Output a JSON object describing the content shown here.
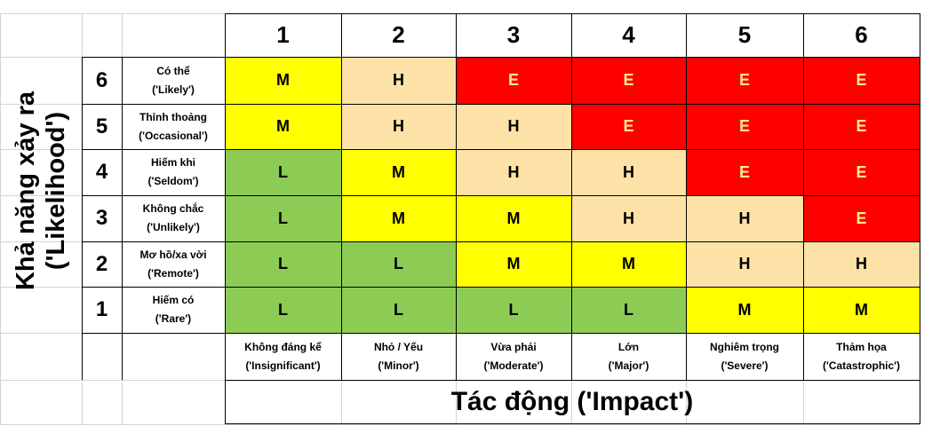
{
  "matrix": {
    "impact_title": "Tác động  ('Impact')",
    "likelihood_title_line1": "Khả năng xảy ra",
    "likelihood_title_line2": "('Likelihood')",
    "impact_levels": [
      {
        "num": "1",
        "name": "Không đáng kể",
        "en": "('Insignificant')"
      },
      {
        "num": "2",
        "name": "Nhỏ / Yếu",
        "en": "('Minor')"
      },
      {
        "num": "3",
        "name": "Vừa phải",
        "en": "('Moderate')"
      },
      {
        "num": "4",
        "name": "Lớn",
        "en": "('Major')"
      },
      {
        "num": "5",
        "name": "Nghiêm trọng",
        "en": "('Severe')"
      },
      {
        "num": "6",
        "name": "Thảm họa",
        "en": "('Catastrophic')"
      }
    ],
    "likelihood_levels": [
      {
        "num": "6",
        "name": "Có thể",
        "en": "('Likely')",
        "ratings": [
          "M",
          "H",
          "E",
          "E",
          "E",
          "E"
        ]
      },
      {
        "num": "5",
        "name": "Thỉnh thoảng",
        "en": "('Occasional')",
        "ratings": [
          "M",
          "H",
          "H",
          "E",
          "E",
          "E"
        ]
      },
      {
        "num": "4",
        "name": "Hiếm khi",
        "en": "('Seldom')",
        "ratings": [
          "L",
          "M",
          "H",
          "H",
          "E",
          "E"
        ]
      },
      {
        "num": "3",
        "name": "Không chắc",
        "en": "('Unlikely')",
        "ratings": [
          "L",
          "M",
          "M",
          "H",
          "H",
          "E"
        ]
      },
      {
        "num": "2",
        "name": "Mơ hồ/xa vời",
        "en": "('Remote')",
        "ratings": [
          "L",
          "L",
          "M",
          "M",
          "H",
          "H"
        ]
      },
      {
        "num": "1",
        "name": "Hiếm có",
        "en": "('Rare')",
        "ratings": [
          "L",
          "L",
          "L",
          "L",
          "M",
          "M"
        ]
      }
    ],
    "rating_colors": {
      "L": "#8ccc55",
      "M": "#ffff00",
      "H": "#fde2a7",
      "E": "#ff0000"
    }
  }
}
